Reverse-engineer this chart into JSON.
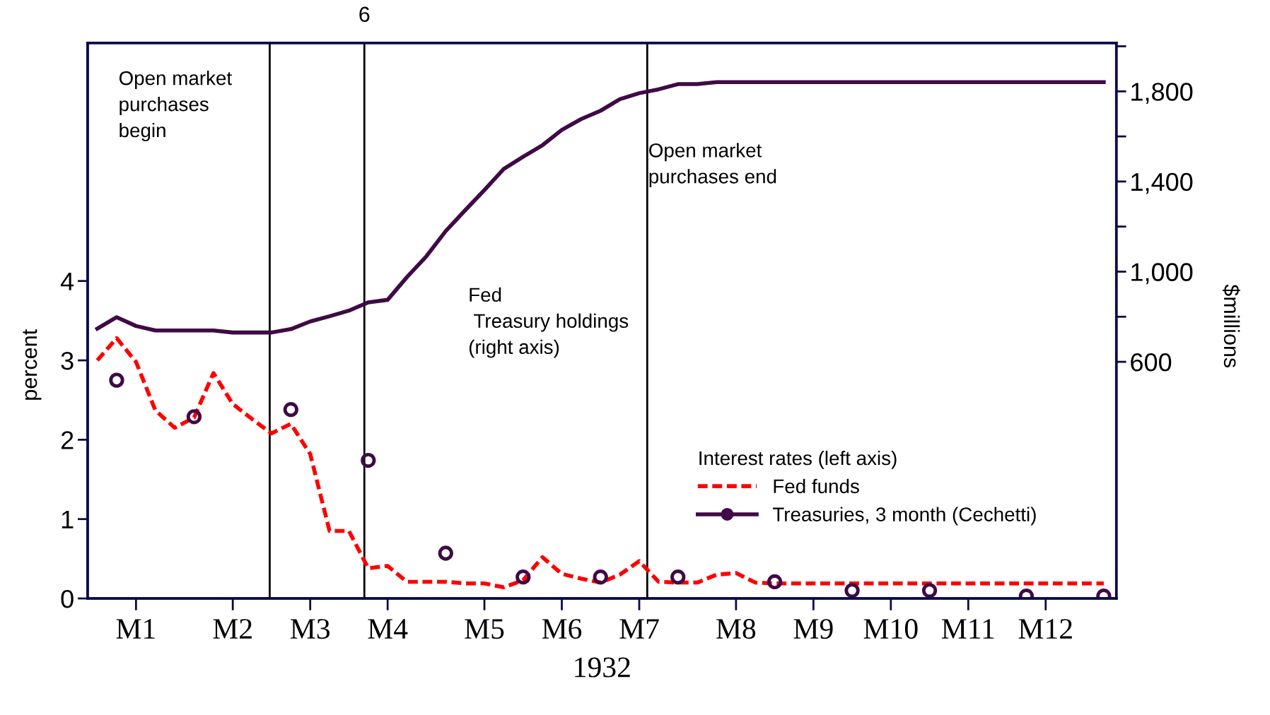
{
  "chart_data": {
    "type": "line",
    "xlabel": "1932",
    "ylabel": "percent",
    "y2label": "$millions",
    "legend_title": "Interest rates (left axis)",
    "legend": "bottom right",
    "categories": [
      null,
      null,
      "M1",
      null,
      null,
      null,
      null,
      "M2",
      null,
      null,
      null,
      "M3",
      null,
      null,
      null,
      "M4",
      null,
      null,
      null,
      null,
      "M5",
      null,
      null,
      null,
      "M6",
      null,
      null,
      null,
      "M7",
      null,
      null,
      null,
      null,
      "M8",
      null,
      null,
      null,
      "M9",
      null,
      null,
      null,
      "M10",
      null,
      null,
      null,
      "M11",
      null,
      null,
      null,
      "M12",
      null,
      null,
      null
    ],
    "ylim": [
      0,
      7
    ],
    "y2lim": [
      -450,
      2015
    ],
    "yticks": [
      0,
      1,
      2,
      3,
      4
    ],
    "y2ticks": [
      {
        "value": 600,
        "label": "600"
      },
      {
        "value": 800,
        "label": null
      },
      {
        "value": 1000,
        "label": "1,000"
      },
      {
        "value": 1200,
        "label": null
      },
      {
        "value": 1400,
        "label": "1,400"
      },
      {
        "value": 1600,
        "label": null
      },
      {
        "value": 1800,
        "label": "1,800"
      },
      {
        "value": 2000,
        "label": null
      }
    ],
    "series": [
      {
        "name": "Fed funds",
        "line_style": "dashed",
        "color": "#ff0000",
        "values": [
          3.0,
          3.28,
          2.98,
          2.37,
          2.15,
          2.28,
          2.84,
          2.45,
          2.26,
          2.08,
          2.2,
          1.82,
          0.85,
          0.85,
          0.38,
          0.41,
          0.21,
          0.21,
          0.21,
          0.19,
          0.19,
          0.14,
          0.23,
          0.52,
          0.31,
          0.25,
          0.2,
          0.3,
          0.47,
          0.21,
          0.2,
          0.2,
          0.3,
          0.32,
          0.2,
          0.19,
          0.19,
          0.19,
          0.19,
          0.19,
          0.19,
          0.19,
          0.19,
          0.19,
          0.19,
          0.19,
          0.19,
          0.19,
          0.19,
          0.19,
          0.19,
          0.19,
          0.19
        ]
      },
      {
        "name": "Treasuries, 3 month (Cechetti)",
        "type": "scatter",
        "marker": "circle",
        "color": "#3f0a45",
        "values": [
          null,
          2.75,
          null,
          null,
          null,
          2.29,
          null,
          null,
          null,
          null,
          2.38,
          null,
          null,
          null,
          1.74,
          null,
          null,
          null,
          0.57,
          null,
          null,
          null,
          0.27,
          null,
          null,
          null,
          0.27,
          null,
          null,
          null,
          0.27,
          null,
          null,
          null,
          null,
          0.21,
          null,
          null,
          null,
          0.1,
          null,
          null,
          null,
          0.1,
          null,
          null,
          null,
          null,
          0.03,
          null,
          null,
          null,
          0.03
        ]
      },
      {
        "axis": "y2",
        "line_style": "solid",
        "color": "#3f0a45",
        "values": [
          747,
          798,
          759,
          739,
          739,
          739,
          739,
          730,
          730,
          730,
          745,
          779,
          802,
          827,
          864,
          875,
          976,
          1068,
          1180,
          1272,
          1362,
          1456,
          1510,
          1561,
          1629,
          1677,
          1714,
          1765,
          1792,
          1809,
          1832,
          1832,
          1841,
          1841,
          1841,
          1841,
          1841,
          1841,
          1841,
          1841,
          1841,
          1841,
          1841,
          1841,
          1841,
          1841,
          1841,
          1841,
          1841,
          1841,
          1841,
          1841,
          1841
        ]
      }
    ],
    "annotations": [
      "Open market\npurchases\nbegin",
      "Fed\n Treasury holdings\n(right axis)",
      "Open market\npurchases end",
      "6"
    ]
  }
}
